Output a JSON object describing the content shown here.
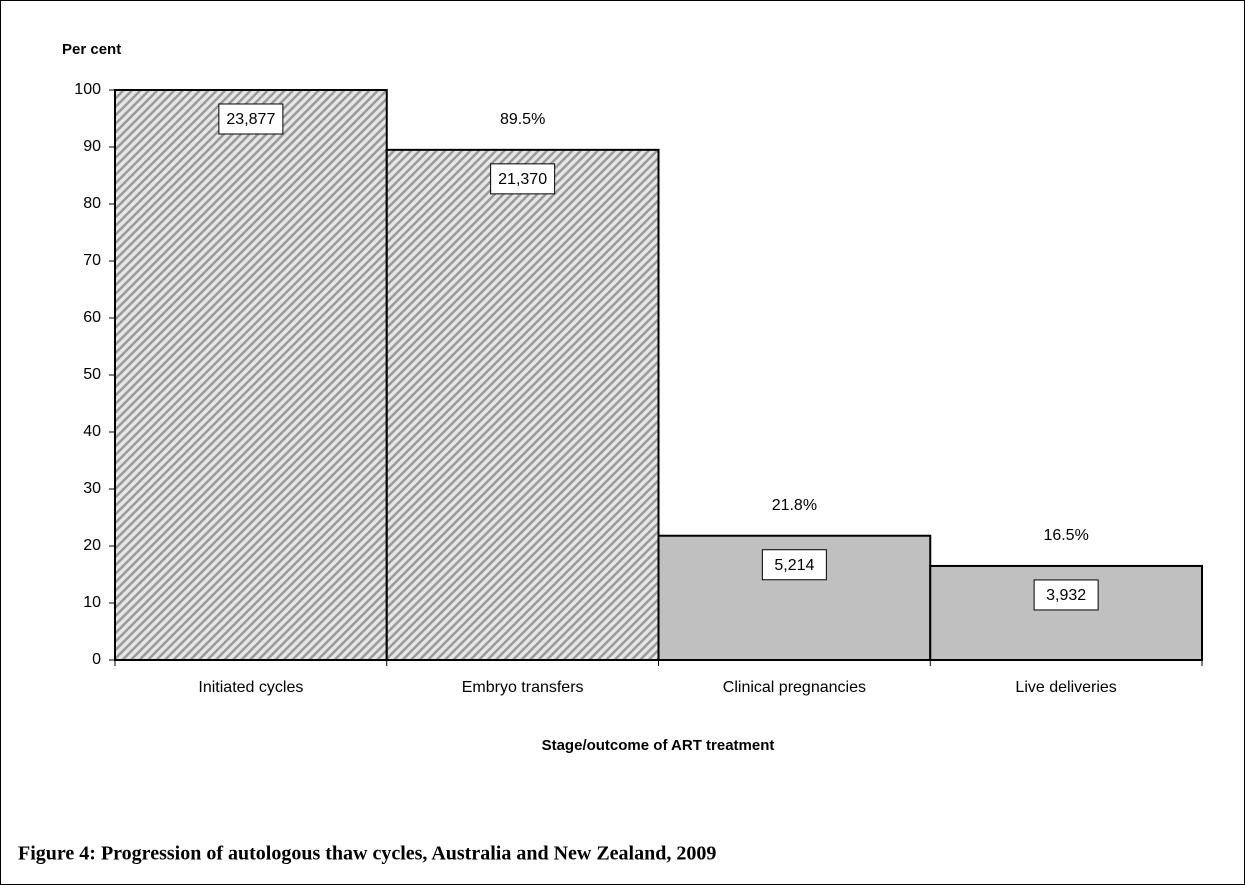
{
  "chart_data": {
    "type": "bar",
    "y_label": "Per cent",
    "x_label": "Stage/outcome of ART treatment",
    "caption": "Figure 4: Progression of autologous thaw cycles, Australia and New Zealand, 2009",
    "categories": [
      "Initiated cycles",
      "Embryo transfers",
      "Clinical pregnancies",
      "Live deliveries"
    ],
    "values": [
      100,
      89.5,
      21.8,
      16.5
    ],
    "value_labels": [
      null,
      "89.5%",
      "21.8%",
      "16.5%"
    ],
    "count_labels": [
      "23,877",
      "21,370",
      "5,214",
      "3,932"
    ],
    "fills": [
      "hatch",
      "hatch",
      "solid",
      "solid"
    ],
    "color": "#c0c0c0",
    "ylim": [
      0,
      100
    ],
    "yticks": [
      0,
      10,
      20,
      30,
      40,
      50,
      60,
      70,
      80,
      90,
      100
    ],
    "grid": false
  }
}
